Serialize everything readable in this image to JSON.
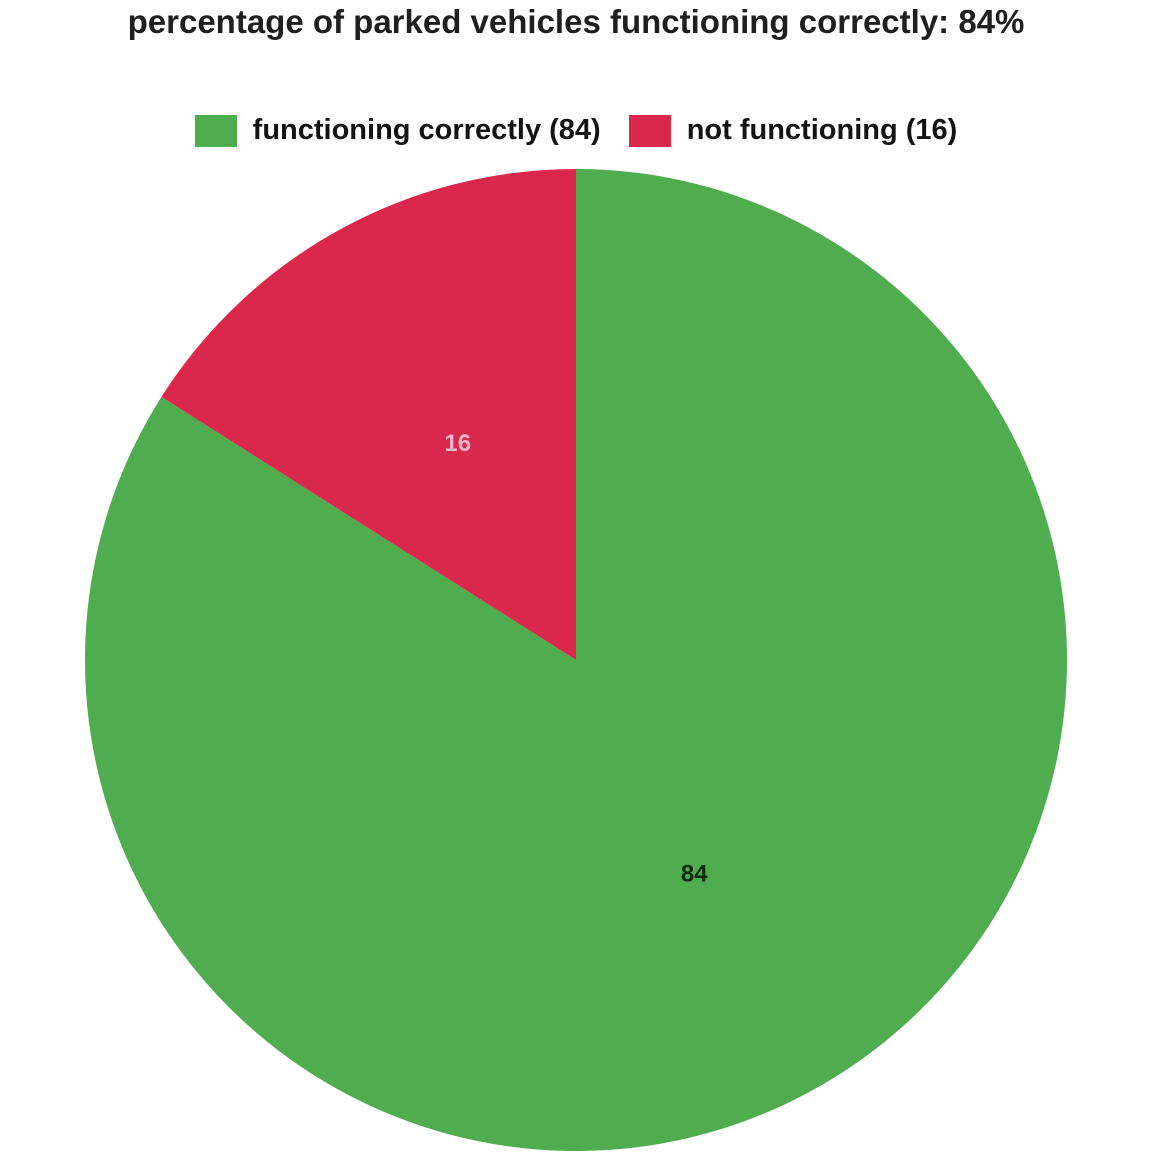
{
  "chart_data": {
    "type": "pie",
    "title": "percentage of parked vehicles functioning correctly: 84%",
    "categories": [
      "functioning correctly",
      "not functioning"
    ],
    "values": [
      84,
      16
    ],
    "legend": {
      "placement": "top",
      "entries": [
        {
          "label": "functioning correctly (84)",
          "color": "#4fac4f"
        },
        {
          "label": "not functioning (16)",
          "color": "#da284c"
        }
      ]
    },
    "slice_labels": [
      "84",
      "16"
    ],
    "slice_label_colors": [
      "#0b2a0b",
      "#f7b5c8"
    ],
    "colors": [
      "#4fac4f",
      "#da284c"
    ],
    "start": "top",
    "direction": "clockwise"
  }
}
